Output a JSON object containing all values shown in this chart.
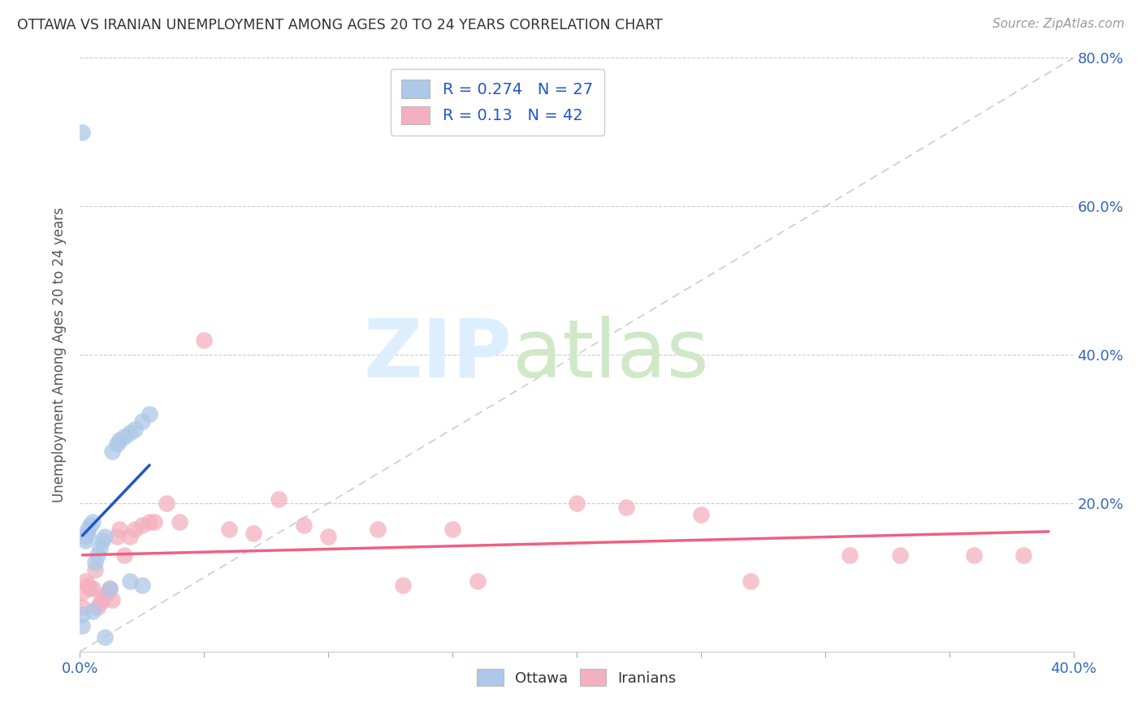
{
  "title": "OTTAWA VS IRANIAN UNEMPLOYMENT AMONG AGES 20 TO 24 YEARS CORRELATION CHART",
  "source": "Source: ZipAtlas.com",
  "ylabel": "Unemployment Among Ages 20 to 24 years",
  "xlim": [
    0.0,
    0.4
  ],
  "ylim": [
    0.0,
    0.8
  ],
  "ottawa_R": 0.274,
  "ottawa_N": 27,
  "iranians_R": 0.13,
  "iranians_N": 42,
  "ottawa_color": "#adc8e8",
  "iranians_color": "#f4b0c0",
  "ottawa_line_color": "#2255cc",
  "iranians_line_color": "#f06080",
  "grid_color": "#cccccc",
  "background_color": "#ffffff",
  "ottawa_x": [
    0.001,
    0.001,
    0.002,
    0.002,
    0.003,
    0.003,
    0.004,
    0.005,
    0.005,
    0.006,
    0.007,
    0.008,
    0.009,
    0.01,
    0.01,
    0.012,
    0.013,
    0.015,
    0.016,
    0.018,
    0.02,
    0.022,
    0.025,
    0.028,
    0.02,
    0.025,
    0.001
  ],
  "ottawa_y": [
    0.05,
    0.035,
    0.15,
    0.155,
    0.16,
    0.165,
    0.17,
    0.175,
    0.055,
    0.12,
    0.13,
    0.14,
    0.15,
    0.155,
    0.02,
    0.085,
    0.27,
    0.28,
    0.285,
    0.29,
    0.295,
    0.3,
    0.31,
    0.32,
    0.095,
    0.09,
    0.7
  ],
  "iranians_x": [
    0.001,
    0.001,
    0.002,
    0.003,
    0.004,
    0.005,
    0.006,
    0.007,
    0.008,
    0.009,
    0.01,
    0.011,
    0.012,
    0.013,
    0.015,
    0.016,
    0.018,
    0.02,
    0.022,
    0.025,
    0.028,
    0.03,
    0.035,
    0.04,
    0.05,
    0.06,
    0.07,
    0.08,
    0.09,
    0.1,
    0.12,
    0.13,
    0.15,
    0.16,
    0.2,
    0.22,
    0.25,
    0.27,
    0.31,
    0.33,
    0.36,
    0.38
  ],
  "iranians_y": [
    0.08,
    0.06,
    0.095,
    0.09,
    0.085,
    0.085,
    0.11,
    0.06,
    0.065,
    0.07,
    0.075,
    0.08,
    0.085,
    0.07,
    0.155,
    0.165,
    0.13,
    0.155,
    0.165,
    0.17,
    0.175,
    0.175,
    0.2,
    0.175,
    0.42,
    0.165,
    0.16,
    0.205,
    0.17,
    0.155,
    0.165,
    0.09,
    0.165,
    0.095,
    0.2,
    0.195,
    0.185,
    0.095,
    0.13,
    0.13,
    0.13,
    0.13
  ]
}
